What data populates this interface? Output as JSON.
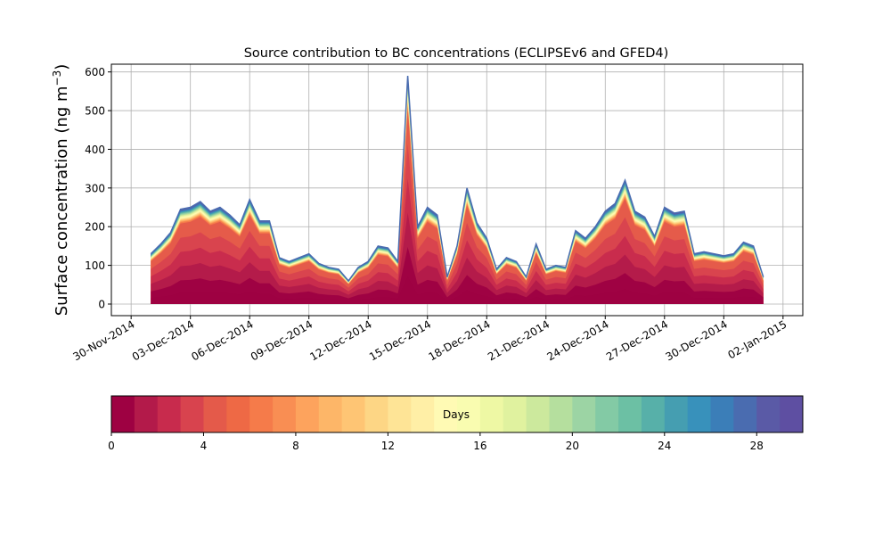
{
  "chart_data": {
    "type": "area",
    "title": "Source contribution to BC concentrations (ECLIPSEv6 and GFED4)",
    "ylabel_main": "Surface concentration (ng m",
    "ylabel_sup": "−3",
    "ylabel_close": ")",
    "xlabel": "",
    "ylim": [
      -30,
      620
    ],
    "yticks": [
      0,
      100,
      200,
      300,
      400,
      500,
      600
    ],
    "x_start": "2014-11-29",
    "x_end": "2015-01-03",
    "xticks": [
      "30-Nov-2014",
      "03-Dec-2014",
      "06-Dec-2014",
      "09-Dec-2014",
      "12-Dec-2014",
      "15-Dec-2014",
      "18-Dec-2014",
      "21-Dec-2014",
      "24-Dec-2014",
      "27-Dec-2014",
      "30-Dec-2014",
      "02-Jan-2015"
    ],
    "grid": true,
    "series_count": 30,
    "total": {
      "x": [
        "2014-12-01",
        "2014-12-01 12:00",
        "2014-12-02",
        "2014-12-02 12:00",
        "2014-12-03",
        "2014-12-03 12:00",
        "2014-12-04",
        "2014-12-04 12:00",
        "2014-12-05",
        "2014-12-05 12:00",
        "2014-12-06",
        "2014-12-06 12:00",
        "2014-12-07",
        "2014-12-07 12:00",
        "2014-12-08",
        "2014-12-08 12:00",
        "2014-12-09",
        "2014-12-09 12:00",
        "2014-12-10",
        "2014-12-10 12:00",
        "2014-12-11",
        "2014-12-11 12:00",
        "2014-12-12",
        "2014-12-12 12:00",
        "2014-12-13",
        "2014-12-13 12:00",
        "2014-12-14",
        "2014-12-14 12:00",
        "2014-12-15",
        "2014-12-15 12:00",
        "2014-12-16",
        "2014-12-16 12:00",
        "2014-12-17",
        "2014-12-17 12:00",
        "2014-12-18",
        "2014-12-18 12:00",
        "2014-12-19",
        "2014-12-19 12:00",
        "2014-12-20",
        "2014-12-20 12:00",
        "2014-12-21",
        "2014-12-21 12:00",
        "2014-12-22",
        "2014-12-22 12:00",
        "2014-12-23",
        "2014-12-23 12:00",
        "2014-12-24",
        "2014-12-24 12:00",
        "2014-12-25",
        "2014-12-25 12:00",
        "2014-12-26",
        "2014-12-26 12:00",
        "2014-12-27",
        "2014-12-27 12:00",
        "2014-12-28",
        "2014-12-28 12:00",
        "2014-12-29",
        "2014-12-29 12:00",
        "2014-12-30",
        "2014-12-30 12:00",
        "2014-12-31",
        "2014-12-31 12:00",
        "2015-01-01"
      ],
      "values": [
        130,
        155,
        185,
        245,
        250,
        265,
        240,
        250,
        230,
        205,
        270,
        215,
        215,
        120,
        110,
        120,
        130,
        105,
        95,
        90,
        60,
        95,
        110,
        150,
        145,
        110,
        590,
        200,
        250,
        230,
        70,
        150,
        300,
        210,
        170,
        90,
        120,
        110,
        70,
        155,
        90,
        100,
        95,
        190,
        170,
        200,
        240,
        260,
        320,
        240,
        225,
        175,
        250,
        235,
        240,
        130,
        135,
        130,
        125,
        130,
        160,
        150,
        70
      ]
    },
    "band_fractions": [
      0.85,
      0.7,
      0.55,
      0.4,
      0.25,
      0.12
    ],
    "colorbar": {
      "label": "Days",
      "min": 0,
      "max": 30,
      "ticks": [
        0,
        4,
        8,
        12,
        16,
        20,
        24,
        28
      ],
      "colors": [
        "#9e0142",
        "#b31a4a",
        "#c82b4d",
        "#d8434e",
        "#e45a4a",
        "#ee6945",
        "#f57b4a",
        "#f98e53",
        "#fda35d",
        "#fdb668",
        "#fec574",
        "#fdd685",
        "#fee496",
        "#ffefa6",
        "#fffab4",
        "#f9fcb0",
        "#eef8a4",
        "#e0f29f",
        "#cce99d",
        "#b5df9e",
        "#9cd4a4",
        "#83caa5",
        "#6cc0a4",
        "#57b0a9",
        "#459eb1",
        "#3891bb",
        "#3b7eb8",
        "#4a6cb0",
        "#5a5aa6",
        "#5e4fa2"
      ]
    }
  }
}
